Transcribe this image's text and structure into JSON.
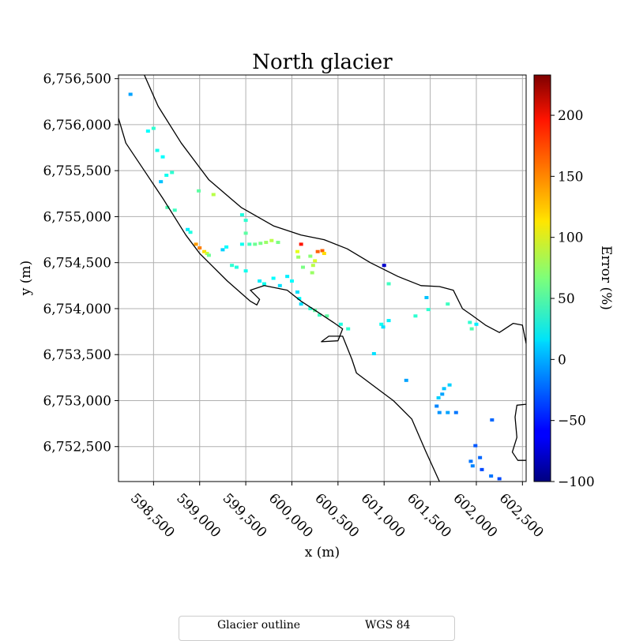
{
  "chart_data": {
    "type": "heatmap",
    "title": "North glacier",
    "xlabel": "x (m)",
    "ylabel": "y (m)",
    "xlim": [
      598120,
      602540
    ],
    "ylim": [
      6752120,
      6756540
    ],
    "x_ticks": [
      598500,
      599000,
      599500,
      600000,
      600500,
      601000,
      601500,
      602000,
      602500
    ],
    "x_tick_labels": [
      "598,500",
      "599,000",
      "599,500",
      "600,000",
      "600,500",
      "601,000",
      "601,500",
      "602,000",
      "602,500"
    ],
    "y_ticks": [
      6752500,
      6753000,
      6753500,
      6754000,
      6754500,
      6755000,
      6755500,
      6756000,
      6756500
    ],
    "y_tick_labels": [
      "6,752,500",
      "6,753,000",
      "6,753,500",
      "6,754,000",
      "6,754,500",
      "6,755,000",
      "6,755,500",
      "6,756,000",
      "6,756,500"
    ],
    "grid": true,
    "colorbar": {
      "label": "Error (%)",
      "colormap": "jet",
      "min": -100,
      "max": 233,
      "ticks": [
        -100,
        -50,
        0,
        50,
        100,
        150,
        200
      ],
      "tick_labels": [
        "−100",
        "−50",
        "0",
        "50",
        "100",
        "150",
        "200"
      ]
    },
    "outline_label": "Glacier outline",
    "outline_color": "#000000",
    "outline_upper": [
      [
        598400,
        6756540
      ],
      [
        598550,
        6756200
      ],
      [
        598800,
        6755800
      ],
      [
        599100,
        6755400
      ],
      [
        599450,
        6755100
      ],
      [
        599800,
        6754900
      ],
      [
        600100,
        6754800
      ],
      [
        600350,
        6754750
      ],
      [
        600600,
        6754650
      ],
      [
        600850,
        6754500
      ],
      [
        601150,
        6754350
      ],
      [
        601400,
        6754250
      ],
      [
        601600,
        6754240
      ],
      [
        601750,
        6754200
      ],
      [
        601850,
        6754000
      ],
      [
        601950,
        6753930
      ],
      [
        602100,
        6753820
      ],
      [
        602250,
        6753740
      ],
      [
        602400,
        6753840
      ],
      [
        602500,
        6753820
      ],
      [
        602540,
        6753620
      ]
    ],
    "outline_lower": [
      [
        598120,
        6756070
      ],
      [
        598200,
        6755800
      ],
      [
        598400,
        6755500
      ],
      [
        598600,
        6755200
      ],
      [
        598850,
        6754800
      ],
      [
        599000,
        6754600
      ],
      [
        599100,
        6754500
      ],
      [
        599300,
        6754300
      ],
      [
        599550,
        6754080
      ],
      [
        599620,
        6754040
      ],
      [
        599650,
        6754100
      ],
      [
        599550,
        6754200
      ],
      [
        599700,
        6754250
      ],
      [
        599950,
        6754200
      ],
      [
        600100,
        6754080
      ],
      [
        600300,
        6753950
      ],
      [
        600450,
        6753850
      ],
      [
        600550,
        6753780
      ],
      [
        600500,
        6753650
      ],
      [
        600320,
        6753640
      ],
      [
        600400,
        6753700
      ],
      [
        600550,
        6753700
      ],
      [
        600650,
        6753450
      ],
      [
        600700,
        6753300
      ],
      [
        600900,
        6753150
      ],
      [
        601100,
        6753000
      ],
      [
        601300,
        6752800
      ],
      [
        601450,
        6752450
      ],
      [
        601600,
        6752120
      ]
    ],
    "outline_right": [
      [
        602540,
        6752960
      ],
      [
        602440,
        6752950
      ],
      [
        602420,
        6752820
      ],
      [
        602440,
        6752600
      ],
      [
        602390,
        6752440
      ],
      [
        602450,
        6752350
      ],
      [
        602540,
        6752350
      ]
    ],
    "cells": [
      [
        598250,
        6756330,
        -5
      ],
      [
        598500,
        6755960,
        40
      ],
      [
        598440,
        6755930,
        25
      ],
      [
        598540,
        6755720,
        30
      ],
      [
        598600,
        6755650,
        25
      ],
      [
        598580,
        6755380,
        5
      ],
      [
        598640,
        6755450,
        30
      ],
      [
        598700,
        6755480,
        40
      ],
      [
        598650,
        6755100,
        50
      ],
      [
        598730,
        6755070,
        45
      ],
      [
        598870,
        6754860,
        20
      ],
      [
        598900,
        6754830,
        35
      ],
      [
        598990,
        6755280,
        55
      ],
      [
        599150,
        6755240,
        85
      ],
      [
        599460,
        6755020,
        35
      ],
      [
        599500,
        6754960,
        40
      ],
      [
        599500,
        6754820,
        55
      ],
      [
        598960,
        6754700,
        140
      ],
      [
        599000,
        6754660,
        150
      ],
      [
        599050,
        6754620,
        120
      ],
      [
        599080,
        6754600,
        90
      ],
      [
        599100,
        6754580,
        60
      ],
      [
        599250,
        6754640,
        10
      ],
      [
        599290,
        6754670,
        25
      ],
      [
        599460,
        6754700,
        30
      ],
      [
        599540,
        6754700,
        45
      ],
      [
        599600,
        6754700,
        60
      ],
      [
        599660,
        6754710,
        65
      ],
      [
        599720,
        6754720,
        75
      ],
      [
        599780,
        6754740,
        85
      ],
      [
        599850,
        6754720,
        65
      ],
      [
        599400,
        6754450,
        35
      ],
      [
        599350,
        6754470,
        40
      ],
      [
        599500,
        6754410,
        30
      ],
      [
        599650,
        6754300,
        20
      ],
      [
        599700,
        6754270,
        30
      ],
      [
        599800,
        6754330,
        25
      ],
      [
        599870,
        6754250,
        15
      ],
      [
        599950,
        6754350,
        20
      ],
      [
        600000,
        6754300,
        25
      ],
      [
        600060,
        6754180,
        15
      ],
      [
        600080,
        6754110,
        25
      ],
      [
        600100,
        6754050,
        15
      ],
      [
        600200,
        6754000,
        40
      ],
      [
        600250,
        6753980,
        55
      ],
      [
        600300,
        6753930,
        45
      ],
      [
        600380,
        6753920,
        55
      ],
      [
        600070,
        6754560,
        75
      ],
      [
        600100,
        6754700,
        185
      ],
      [
        600060,
        6754620,
        100
      ],
      [
        600200,
        6754570,
        70
      ],
      [
        600250,
        6754520,
        95
      ],
      [
        600230,
        6754470,
        85
      ],
      [
        600220,
        6754390,
        75
      ],
      [
        600280,
        6754620,
        160
      ],
      [
        600330,
        6754630,
        160
      ],
      [
        600350,
        6754600,
        120
      ],
      [
        600120,
        6754450,
        65
      ],
      [
        601000,
        6754470,
        -75
      ],
      [
        601050,
        6754270,
        45
      ],
      [
        600970,
        6753830,
        30
      ],
      [
        601050,
        6753870,
        20
      ],
      [
        600990,
        6753800,
        15
      ],
      [
        600530,
        6753830,
        35
      ],
      [
        600610,
        6753780,
        40
      ],
      [
        600890,
        6753510,
        15
      ],
      [
        601460,
        6754120,
        5
      ],
      [
        601690,
        6754050,
        45
      ],
      [
        601340,
        6753920,
        40
      ],
      [
        601480,
        6753990,
        40
      ],
      [
        601930,
        6753850,
        40
      ],
      [
        602000,
        6753830,
        20
      ],
      [
        601950,
        6753780,
        50
      ],
      [
        601240,
        6753220,
        -5
      ],
      [
        601710,
        6753170,
        10
      ],
      [
        601650,
        6753130,
        5
      ],
      [
        601630,
        6753070,
        -5
      ],
      [
        601590,
        6753030,
        10
      ],
      [
        601570,
        6752940,
        -15
      ],
      [
        601600,
        6752870,
        -10
      ],
      [
        601690,
        6752870,
        -5
      ],
      [
        601780,
        6752870,
        -20
      ],
      [
        601990,
        6752510,
        -30
      ],
      [
        602040,
        6752380,
        -25
      ],
      [
        601940,
        6752340,
        -20
      ],
      [
        601960,
        6752290,
        -15
      ],
      [
        602060,
        6752250,
        -35
      ],
      [
        602170,
        6752790,
        -25
      ],
      [
        602160,
        6752180,
        -20
      ],
      [
        602250,
        6752150,
        -35
      ]
    ]
  },
  "legend": {
    "outline_label": "Glacier outline",
    "crs_label": "WGS 84"
  }
}
